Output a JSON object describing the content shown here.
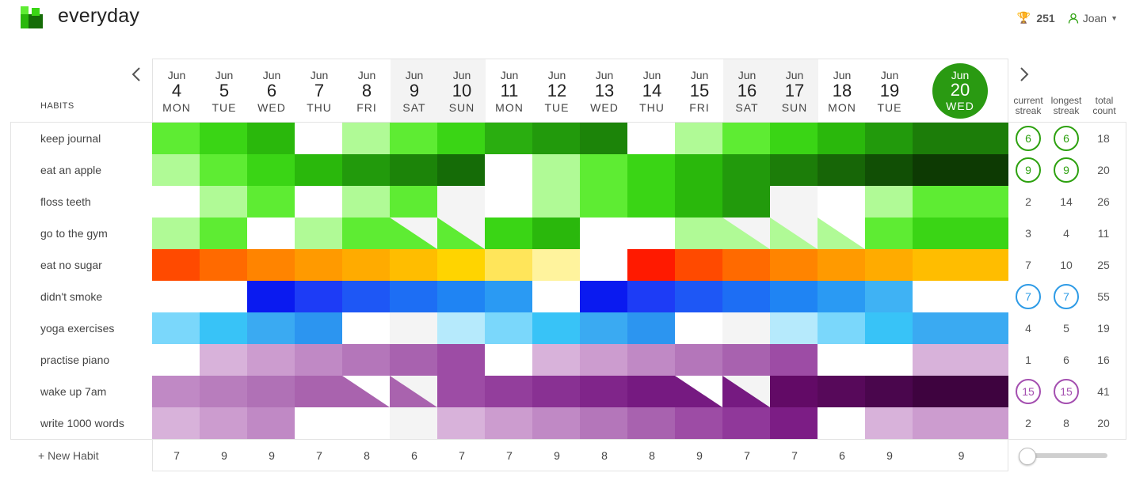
{
  "app": {
    "name": "everyday"
  },
  "header": {
    "score": "251",
    "user_name": "Joan",
    "trophy_icon": "trophy-icon",
    "user_icon": "user-icon"
  },
  "habits_header": "HABITS",
  "stat_headers": [
    "current streak",
    "longest streak",
    "total count"
  ],
  "new_habit_label": "+ New Habit",
  "today_index": 16,
  "dates": [
    {
      "month": "Jun",
      "day": "4",
      "weekday": "MON",
      "weekend": false
    },
    {
      "month": "Jun",
      "day": "5",
      "weekday": "TUE",
      "weekend": false
    },
    {
      "month": "Jun",
      "day": "6",
      "weekday": "WED",
      "weekend": false
    },
    {
      "month": "Jun",
      "day": "7",
      "weekday": "THU",
      "weekend": false
    },
    {
      "month": "Jun",
      "day": "8",
      "weekday": "FRI",
      "weekend": false
    },
    {
      "month": "Jun",
      "day": "9",
      "weekday": "SAT",
      "weekend": true
    },
    {
      "month": "Jun",
      "day": "10",
      "weekday": "SUN",
      "weekend": true
    },
    {
      "month": "Jun",
      "day": "11",
      "weekday": "MON",
      "weekend": false
    },
    {
      "month": "Jun",
      "day": "12",
      "weekday": "TUE",
      "weekend": false
    },
    {
      "month": "Jun",
      "day": "13",
      "weekday": "WED",
      "weekend": false
    },
    {
      "month": "Jun",
      "day": "14",
      "weekday": "THU",
      "weekend": false
    },
    {
      "month": "Jun",
      "day": "15",
      "weekday": "FRI",
      "weekend": false
    },
    {
      "month": "Jun",
      "day": "16",
      "weekday": "SAT",
      "weekend": true
    },
    {
      "month": "Jun",
      "day": "17",
      "weekday": "SUN",
      "weekend": true
    },
    {
      "month": "Jun",
      "day": "18",
      "weekday": "MON",
      "weekend": false
    },
    {
      "month": "Jun",
      "day": "19",
      "weekday": "TUE",
      "weekend": false
    },
    {
      "month": "Jun",
      "day": "20",
      "weekday": "WED",
      "weekend": false
    }
  ],
  "habits": [
    {
      "name": "keep journal",
      "current": "6",
      "longest": "6",
      "total": "18",
      "circled": true,
      "ring": "#2da10f",
      "cells": [
        "#5eec33",
        "#3ad515",
        "#2ab80c",
        "",
        "#b0fa96",
        "#5eec33",
        "#3ad515",
        "#2aae10",
        "#229a0c",
        "#1c8409",
        "",
        "#b0fa96",
        "#5eec33",
        "#3ad515",
        "#2ab80c",
        "#229a0c",
        "#1c7d09"
      ]
    },
    {
      "name": "eat an apple",
      "current": "9",
      "longest": "9",
      "total": "20",
      "circled": true,
      "ring": "#2da10f",
      "cells": [
        "#b0fa96",
        "#5eec33",
        "#3ad515",
        "#2ab80c",
        "#229a0c",
        "#1c8409",
        "#156c07",
        "",
        "#b0fa96",
        "#5eec33",
        "#3ad515",
        "#2ab80c",
        "#229a0c",
        "#1c7d09",
        "#176607",
        "#114f05",
        "#0d3a03"
      ]
    },
    {
      "name": "floss teeth",
      "current": "2",
      "longest": "14",
      "total": "26",
      "circled": false,
      "ring": "",
      "cells": [
        "",
        "#b0fa96",
        "#5eec33",
        "",
        "#b0fa96",
        "#5eec33",
        "d",
        "",
        "#b0fa96",
        "#5eec33",
        "#3ad515",
        "#2ab80c",
        "#229a0c",
        "d",
        "",
        "#b0fa96",
        "#5eec33"
      ]
    },
    {
      "name": "go to the gym",
      "current": "3",
      "longest": "4",
      "total": "11",
      "circled": false,
      "ring": "",
      "cells": [
        "#b0fa96",
        "#5eec33",
        "",
        "#b0fa96",
        "#5eec33",
        "d:#5eec33",
        "d:#5eec33",
        "#3ad515",
        "#2ab80c",
        "",
        "",
        "#b0fa96",
        "d:#b0fa96",
        "d:#b0fa96",
        "d:#b0fa96",
        "#5eec33",
        "#3ad515"
      ]
    },
    {
      "name": "eat no sugar",
      "current": "7",
      "longest": "10",
      "total": "25",
      "circled": false,
      "ring": "",
      "cells": [
        "#ff4a00",
        "#ff6a00",
        "#ff8400",
        "#ff9a00",
        "#ffab00",
        "#ffbd00",
        "#ffd400",
        "#ffe55a",
        "#fff39d",
        "",
        "#ff1a00",
        "#ff4a00",
        "#ff6a00",
        "#ff8400",
        "#ff9a00",
        "#ffab00",
        "#ffbd00"
      ]
    },
    {
      "name": "didn't smoke",
      "current": "7",
      "longest": "7",
      "total": "55",
      "circled": true,
      "ring": "#2e9be6",
      "cells": [
        "",
        "",
        "#0a1af0",
        "#1d3cf6",
        "#1e57f5",
        "#1d6ef4",
        "#1f84f3",
        "#2a9af3",
        "",
        "#0a1af0",
        "#1d3cf6",
        "#1e57f5",
        "#1d6ef4",
        "#1f84f3",
        "#2a9af3",
        "#3fb2f4",
        ""
      ]
    },
    {
      "name": "yoga exercises",
      "current": "4",
      "longest": "5",
      "total": "19",
      "circled": false,
      "ring": "",
      "cells": [
        "#7ad7fb",
        "#38c3f7",
        "#3aaaf2",
        "#2c95f0",
        "",
        "",
        "#b6eafc",
        "#7ad7fb",
        "#38c3f7",
        "#3aaaf2",
        "#2c95f0",
        "",
        "",
        "#b6eafc",
        "#7ad7fb",
        "#38c3f7",
        "#3aaaf2"
      ]
    },
    {
      "name": "practise piano",
      "current": "1",
      "longest": "6",
      "total": "16",
      "circled": false,
      "ring": "",
      "cells": [
        "",
        "#d8b2da",
        "#cc9ccf",
        "#c089c5",
        "#b476ba",
        "#a862af",
        "#9d4ca5",
        "",
        "#d8b2da",
        "#cc9ccf",
        "#c089c5",
        "#b476ba",
        "#a862af",
        "#9d4ca5",
        "",
        "",
        "#d8b2da"
      ]
    },
    {
      "name": "wake up 7am",
      "current": "15",
      "longest": "15",
      "total": "41",
      "circled": true,
      "ring": "#a44fb0",
      "cells": [
        "#c089c5",
        "#b87dbd",
        "#b071b6",
        "#a963ae",
        "d:#a963ae",
        "d:#a963ae",
        "#9d4ca5",
        "#933e9c",
        "#893193",
        "#80258a",
        "#761a81",
        "d:#761a81",
        "d:#761a81",
        "#620a66",
        "#57095a",
        "#4a064d",
        "#3e033f"
      ]
    },
    {
      "name": "write 1000 words",
      "current": "2",
      "longest": "8",
      "total": "20",
      "circled": false,
      "ring": "",
      "cells": [
        "#d8b2da",
        "#cc9ccf",
        "#c089c5",
        "",
        "",
        "",
        "#d8b2da",
        "#cc9ccf",
        "#c089c5",
        "#b476ba",
        "#a862af",
        "#9d4ca5",
        "#90389a",
        "#7c1d85",
        "",
        "#d8b2da",
        "#cc9ccf"
      ]
    }
  ],
  "daily_counts": [
    "7",
    "9",
    "9",
    "7",
    "8",
    "6",
    "7",
    "7",
    "9",
    "8",
    "8",
    "9",
    "7",
    "7",
    "6",
    "9",
    "9"
  ]
}
